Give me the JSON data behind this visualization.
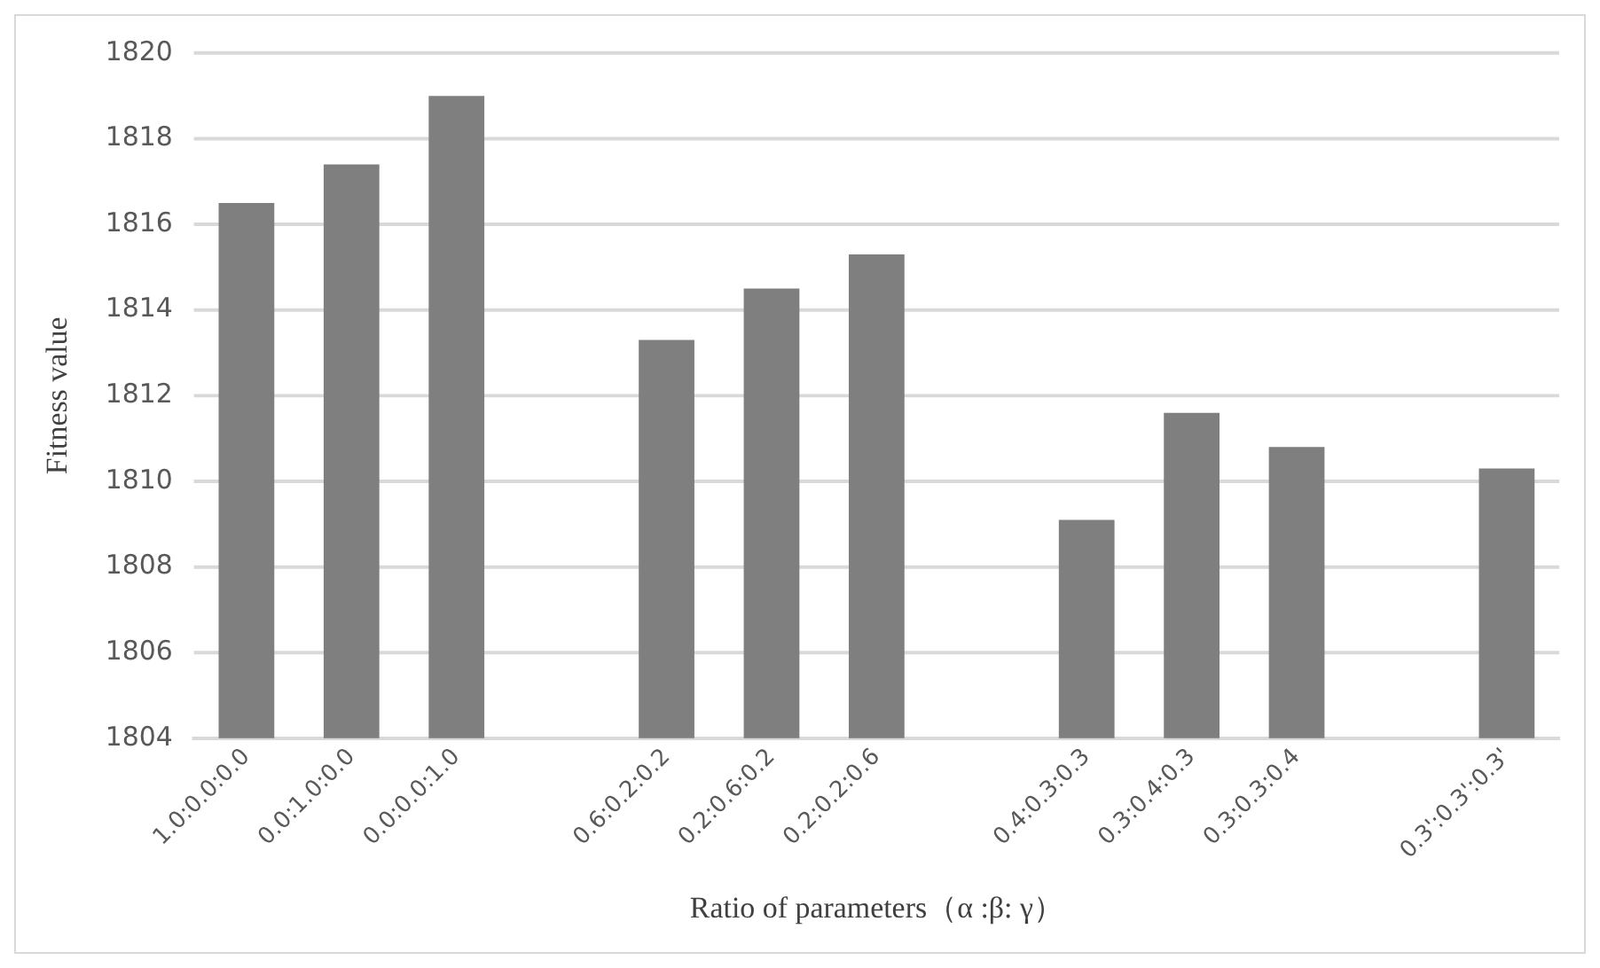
{
  "chart_data": {
    "type": "bar",
    "xlabel": "Ratio of parameters（α :β: γ）",
    "ylabel": "Fitness value",
    "categories": [
      "1.0:0.0:0.0",
      "0.0:1.0:0.0",
      "0.0:0.0:1.0",
      null,
      "0.6:0.2:0.2",
      "0.2:0.6:0.2",
      "0.2:0.2:0.6",
      null,
      "0.4:0.3:0.3",
      "0.3:0.4:0.3",
      "0.3:0.3:0.4",
      null,
      "0.3':0.3':0.3'"
    ],
    "values": [
      1816.5,
      1817.4,
      1819.0,
      null,
      1813.3,
      1814.5,
      1815.3,
      null,
      1809.1,
      1811.6,
      1810.8,
      null,
      1810.3
    ],
    "color": "#7f7f7f",
    "ylim": [
      1804,
      1820
    ],
    "yticks": [
      1804,
      1806,
      1808,
      1810,
      1812,
      1814,
      1816,
      1818,
      1820
    ],
    "grid": "y",
    "legend": false
  }
}
